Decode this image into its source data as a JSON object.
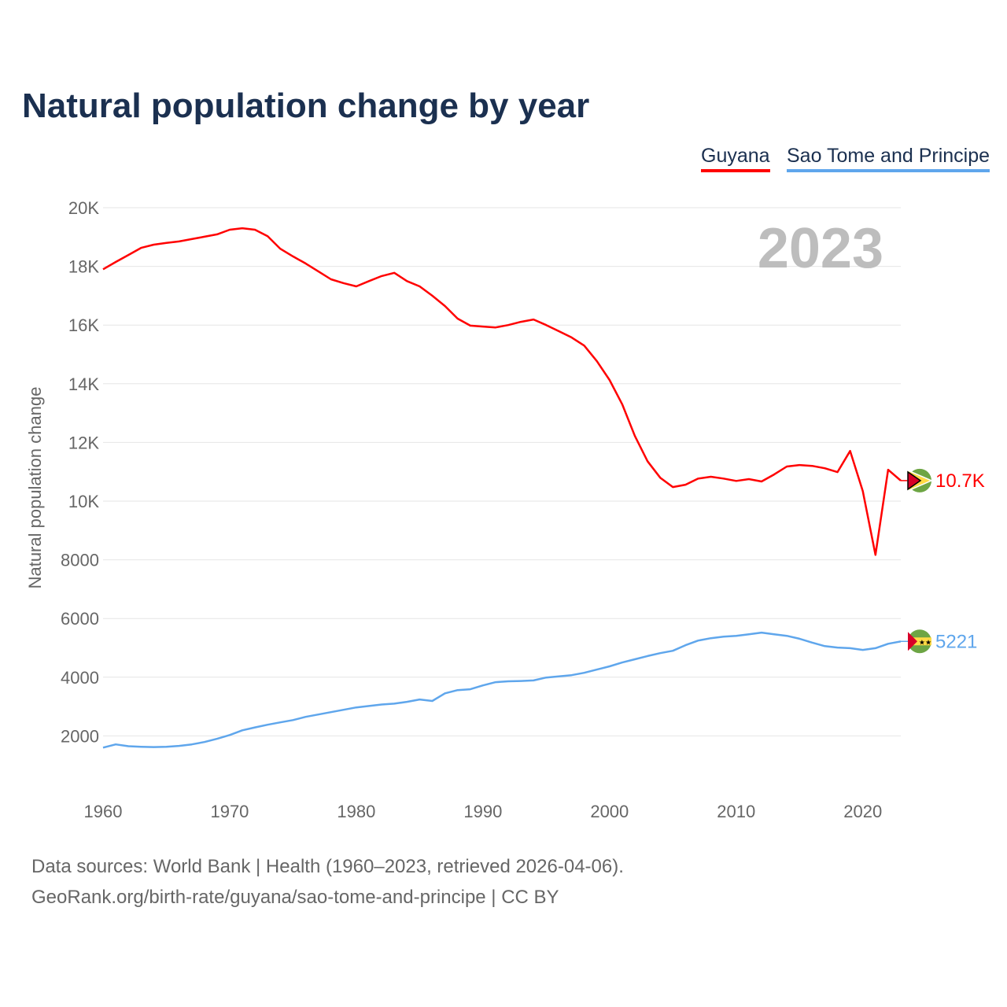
{
  "chart_data": {
    "type": "line",
    "title": "Natural population change by year",
    "xlabel": "",
    "ylabel": "Natural population change",
    "xlim": [
      1960,
      2023
    ],
    "ylim": [
      0,
      20000
    ],
    "x_ticks": [
      1960,
      1970,
      1980,
      1990,
      2000,
      2010,
      2020
    ],
    "x_tick_labels": [
      "1960",
      "1970",
      "1980",
      "1990",
      "2000",
      "2010",
      "2020"
    ],
    "y_ticks": [
      2000,
      4000,
      6000,
      8000,
      10000,
      12000,
      14000,
      16000,
      18000,
      20000
    ],
    "y_tick_labels": [
      "2000",
      "4000",
      "6000",
      "8000",
      "10K",
      "12K",
      "14K",
      "16K",
      "18K",
      "20K"
    ],
    "grid": true,
    "legend_placement": "top-right",
    "year_label": "2023",
    "x": [
      1960,
      1961,
      1962,
      1963,
      1964,
      1965,
      1966,
      1967,
      1968,
      1969,
      1970,
      1971,
      1972,
      1973,
      1974,
      1975,
      1976,
      1977,
      1978,
      1979,
      1980,
      1981,
      1982,
      1983,
      1984,
      1985,
      1986,
      1987,
      1988,
      1989,
      1990,
      1991,
      1992,
      1993,
      1994,
      1995,
      1996,
      1997,
      1998,
      1999,
      2000,
      2001,
      2002,
      2003,
      2004,
      2005,
      2006,
      2007,
      2008,
      2009,
      2010,
      2011,
      2012,
      2013,
      2014,
      2015,
      2016,
      2017,
      2018,
      2019,
      2020,
      2021,
      2022,
      2023
    ],
    "series": [
      {
        "name": "Guyana",
        "color": "#ff0000",
        "end_label": "10.7K",
        "values": [
          17900,
          18150,
          18390,
          18630,
          18740,
          18800,
          18850,
          18930,
          19010,
          19090,
          19250,
          19300,
          19250,
          19030,
          18600,
          18340,
          18100,
          17830,
          17560,
          17430,
          17320,
          17500,
          17670,
          17780,
          17500,
          17320,
          17000,
          16650,
          16220,
          15980,
          15950,
          15920,
          16000,
          16110,
          16190,
          16000,
          15790,
          15580,
          15300,
          14770,
          14130,
          13300,
          12220,
          11360,
          10800,
          10480,
          10560,
          10770,
          10830,
          10770,
          10690,
          10750,
          10670,
          10910,
          11180,
          11230,
          11200,
          11120,
          10990,
          11710,
          10340,
          8170,
          11070,
          10700
        ]
      },
      {
        "name": "Sao Tome and Principe",
        "color": "#5fa6ec",
        "end_label": "5221",
        "values": [
          1600,
          1710,
          1650,
          1630,
          1620,
          1630,
          1660,
          1710,
          1790,
          1900,
          2030,
          2190,
          2290,
          2380,
          2460,
          2540,
          2650,
          2730,
          2810,
          2890,
          2970,
          3020,
          3070,
          3100,
          3160,
          3240,
          3190,
          3450,
          3560,
          3590,
          3720,
          3830,
          3860,
          3870,
          3890,
          3990,
          4030,
          4070,
          4150,
          4260,
          4370,
          4500,
          4610,
          4720,
          4820,
          4900,
          5090,
          5250,
          5330,
          5380,
          5410,
          5460,
          5520,
          5460,
          5410,
          5310,
          5180,
          5060,
          5010,
          4990,
          4930,
          4990,
          5140,
          5221
        ]
      }
    ]
  },
  "footer": {
    "line1": "Data sources: World Bank | Health (1960–2023, retrieved 2026-04-06).",
    "line2": "GeoRank.org/birth-rate/guyana/sao-tome-and-principe | CC BY"
  }
}
